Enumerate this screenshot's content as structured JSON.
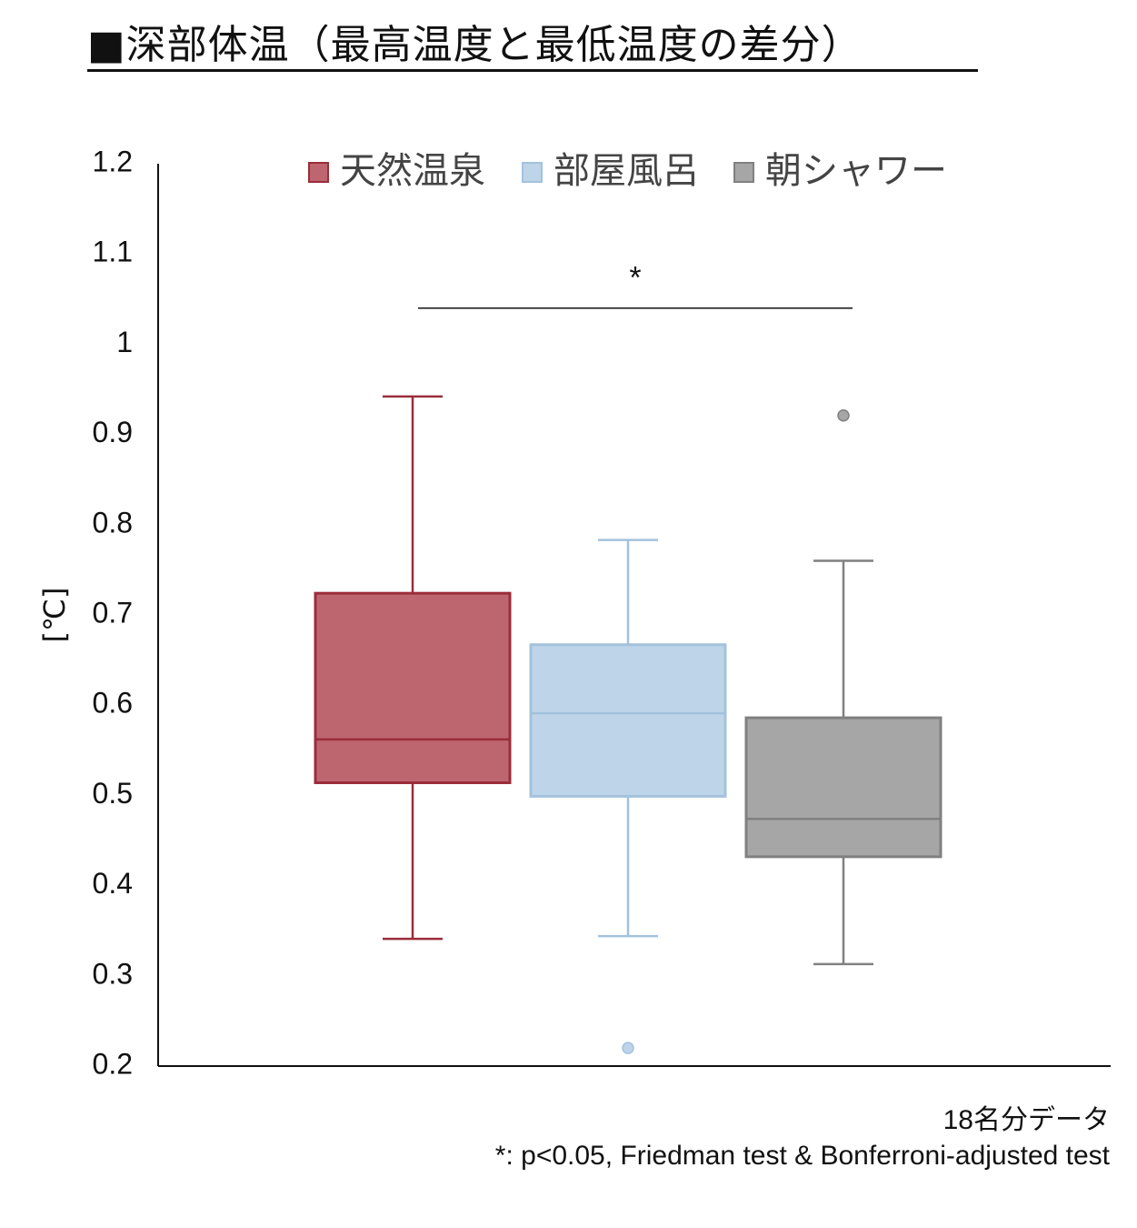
{
  "title": "■深部体温（最高温度と最低温度の差分）",
  "notes": {
    "sample": "18名分データ",
    "stats": "*: p<0.05, Friedman test & Bonferroni-adjusted test"
  },
  "chart_data": {
    "type": "boxplot",
    "ylabel": "[℃]",
    "ylim": [
      0.2,
      1.2
    ],
    "yticks": [
      0.2,
      0.3,
      0.4,
      0.5,
      0.6,
      0.7,
      0.8,
      0.9,
      1.0,
      1.1,
      1.2
    ],
    "ytick_labels": [
      "0.2",
      "0.3",
      "0.4",
      "0.5",
      "0.6",
      "0.7",
      "0.8",
      "0.9",
      "1",
      "1.1",
      "1.2"
    ],
    "legend_position": "top",
    "series": [
      {
        "name": "天然温泉",
        "color": "#bd6670",
        "edge": "#9b2d3a",
        "whisker_low": 0.341,
        "q1": 0.514,
        "median": 0.562,
        "q3": 0.724,
        "whisker_high": 0.942,
        "outliers": []
      },
      {
        "name": "部屋風呂",
        "color": "#bed4e8",
        "edge": "#a3c2dc",
        "whisker_low": 0.344,
        "q1": 0.499,
        "median": 0.591,
        "q3": 0.667,
        "whisker_high": 0.783,
        "outliers": [
          0.22
        ]
      },
      {
        "name": "朝シャワー",
        "color": "#a6a6a6",
        "edge": "#808080",
        "whisker_low": 0.313,
        "q1": 0.432,
        "median": 0.474,
        "q3": 0.586,
        "whisker_high": 0.76,
        "outliers": [
          0.921
        ]
      }
    ],
    "significance": {
      "label": "*",
      "from": 0,
      "to": 2,
      "y": 1.04
    }
  }
}
